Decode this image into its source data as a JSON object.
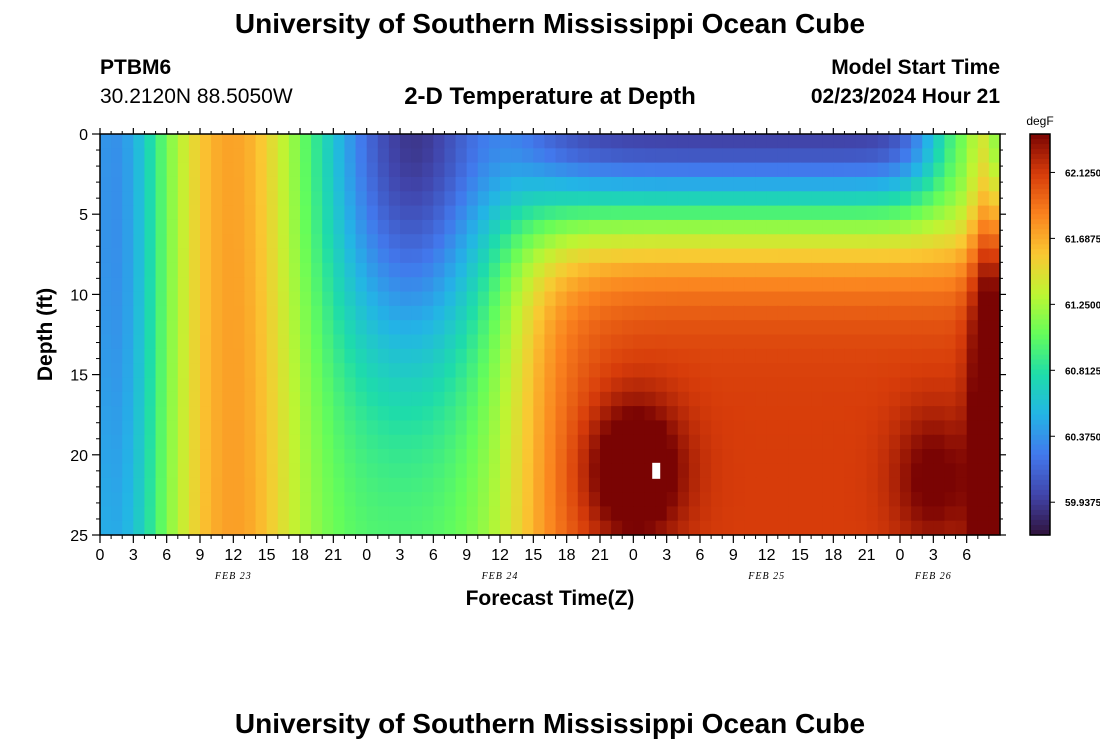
{
  "header": {
    "title": "University of Southern Mississippi Ocean Cube",
    "station_id": "PTBM6",
    "station_location": "30.2120N  88.5050W",
    "subtitle": "2-D Temperature at Depth",
    "model_label": "Model Start Time",
    "model_time": "02/23/2024 Hour 21"
  },
  "footer": {
    "title": "University of Southern Mississippi Ocean Cube"
  },
  "chart_data": {
    "type": "heatmap",
    "title": "2-D Temperature at Depth",
    "xlabel": "Forecast Time(Z)",
    "ylabel": "Depth (ft)",
    "ylim": [
      0,
      25
    ],
    "y_ticks": [
      0,
      5,
      10,
      15,
      20,
      25
    ],
    "x_range_hours": [
      0,
      81
    ],
    "x_tick_labels": [
      "0",
      "3",
      "6",
      "9",
      "12",
      "15",
      "18",
      "21",
      "0",
      "3",
      "6",
      "9",
      "12",
      "15",
      "18",
      "21",
      "0",
      "3",
      "6",
      "9",
      "12",
      "15",
      "18",
      "21",
      "0",
      "3",
      "6"
    ],
    "date_labels": [
      {
        "label": "FEB 23",
        "hour": 12
      },
      {
        "label": "FEB 24",
        "hour": 36
      },
      {
        "label": "FEB 25",
        "hour": 60
      },
      {
        "label": "FEB 26",
        "hour": 75
      }
    ],
    "colorbar": {
      "unit": "degF",
      "min": 59.72,
      "max": 62.38,
      "tick_values": [
        59.9375,
        60.375,
        60.8125,
        61.25,
        61.6875,
        62.125
      ],
      "tick_labels": [
        "59.9375",
        "60.3750",
        "60.8125",
        "61.2500",
        "61.6875",
        "62.1250"
      ]
    },
    "features": [
      {
        "desc": "warm column",
        "hour_center": 12,
        "depth_range": [
          0,
          25
        ],
        "approx_degF": 62.0
      },
      {
        "desc": "cold surface layer",
        "hour_center": 27,
        "depth_range": [
          0,
          12
        ],
        "approx_degF": 60.3
      },
      {
        "desc": "cold surface layer",
        "hour_center": 58,
        "depth_range": [
          0,
          4
        ],
        "approx_degF": 60.2
      },
      {
        "desc": "warm core",
        "hour_center": 48,
        "depth_center": 21,
        "approx_degF": 62.4
      }
    ]
  }
}
